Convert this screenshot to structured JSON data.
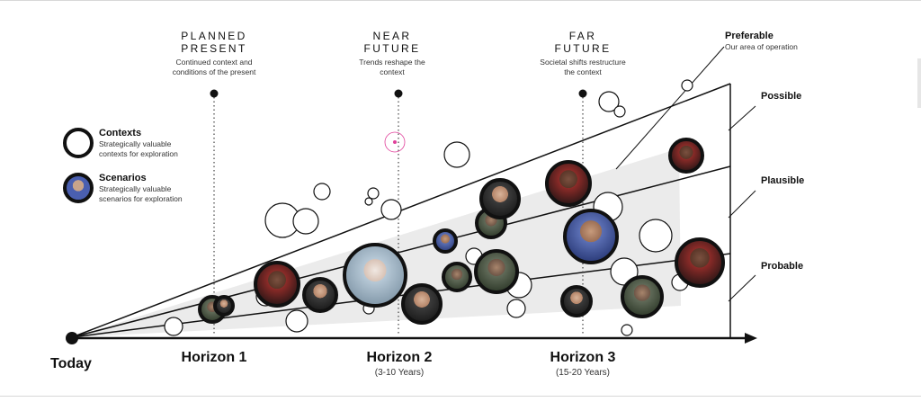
{
  "columns": [
    {
      "id": "planned-present",
      "title": "PLANNED\nPRESENT",
      "description": "Continued context and\nconditions of the present"
    },
    {
      "id": "near-future",
      "title": "NEAR\nFUTURE",
      "description": "Trends reshape the\ncontext"
    },
    {
      "id": "far-future",
      "title": "FAR\nFUTURE",
      "description": "Societal shifts restructure\nthe context"
    }
  ],
  "legend": {
    "contexts": {
      "title": "Contexts",
      "description": "Strategically valuable\ncontexts for exploration"
    },
    "scenarios": {
      "title": "Scenarios",
      "description": "Strategically valuable\nscenarios for exploration"
    }
  },
  "cones": {
    "preferable": {
      "title": "Preferable",
      "description": "Our area of operation"
    },
    "possible": "Possible",
    "plausible": "Plausible",
    "probable": "Probable"
  },
  "timeline": {
    "today": "Today",
    "horizons": [
      {
        "title": "Horizon 1",
        "subtitle": ""
      },
      {
        "title": "Horizon 2",
        "subtitle": "(3-10 Years)"
      },
      {
        "title": "Horizon 3",
        "subtitle": "(15-20 Years)"
      }
    ]
  },
  "colors": {
    "line": "#111111",
    "cone_fill": "#ebebeb",
    "highlight": "#e0409a"
  }
}
